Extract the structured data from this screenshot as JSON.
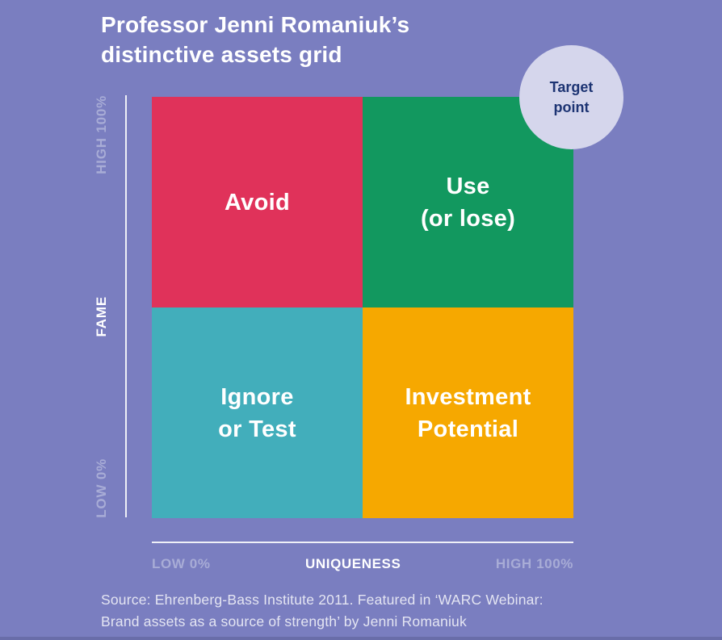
{
  "page": {
    "background": "#7A7EC0",
    "footer_strip_color": "#696DA9"
  },
  "title": {
    "text": "Professor Jenni Romaniuk’s\ndistinctive assets grid",
    "color": "#FFFFFF"
  },
  "target_badge": {
    "label": "Target\npoint",
    "bg_color": "#D5D6EC",
    "text_color": "#1D3473"
  },
  "grid": {
    "label_color": "#FFFFFF",
    "quadrants": [
      {
        "id": "avoid",
        "position": "top-left",
        "label": "Avoid",
        "color": "#E0325A"
      },
      {
        "id": "use-or-lose",
        "position": "top-right",
        "label": "Use\n(or lose)",
        "color": "#12985F"
      },
      {
        "id": "ignore-or-test",
        "position": "bottom-left",
        "label": "Ignore\nor Test",
        "color": "#42AEBB"
      },
      {
        "id": "investment-potential",
        "position": "bottom-right",
        "label": "Investment\nPotential",
        "color": "#F6A800"
      }
    ]
  },
  "y_axis": {
    "title": "FAME",
    "top_tick": "HIGH 100%",
    "bottom_tick": "LOW 0%",
    "title_color": "#FFFFFF",
    "tick_color": "#A8ACD6",
    "line_color": "#EFF0F7"
  },
  "x_axis": {
    "title": "UNIQUENESS",
    "left_tick": "LOW 0%",
    "right_tick": "HIGH 100%",
    "title_color": "#FFFFFF",
    "tick_color": "#A8ACD6",
    "line_color": "#EFF0F7"
  },
  "source": {
    "text": "Source: Ehrenberg-Bass Institute 2011. Featured in ‘WARC Webinar:\nBrand assets as a source of strength’ by Jenni Romaniuk"
  }
}
